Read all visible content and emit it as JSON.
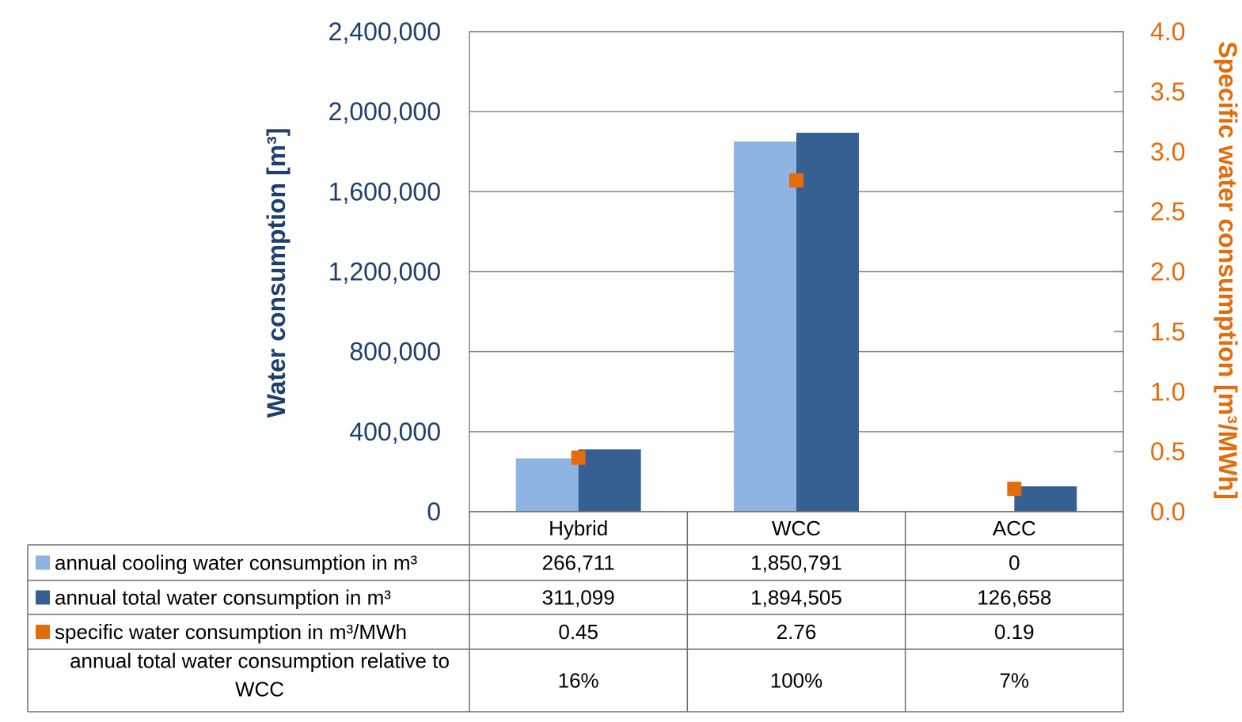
{
  "chart_data": {
    "type": "bar",
    "categories": [
      "Hybrid",
      "WCC",
      "ACC"
    ],
    "series": [
      {
        "name": "annual cooling water consumption in m³",
        "axis": "left",
        "kind": "bar",
        "color": "#8eb4e3",
        "values": [
          266711,
          1850791,
          0
        ]
      },
      {
        "name": "annual total water consumption in m³",
        "axis": "left",
        "kind": "bar",
        "color": "#376092",
        "values": [
          311099,
          1894505,
          126658
        ]
      },
      {
        "name": "specific water consumption in  m³/MWh",
        "axis": "right",
        "kind": "marker",
        "color": "#e46c0a",
        "values": [
          0.45,
          2.76,
          0.19
        ]
      }
    ],
    "ylabel": "Water consumption [m³]",
    "y2label": "Specific water consumption [m³/MWh]",
    "ylim": [
      0,
      2400000
    ],
    "y2lim": [
      0,
      4.0
    ],
    "yticks": [
      "0",
      "400,000",
      "800,000",
      "1,200,000",
      "1,600,000",
      "2,000,000",
      "2,400,000"
    ],
    "y2ticks": [
      "0.0",
      "0.5",
      "1.0",
      "1.5",
      "2.0",
      "2.5",
      "3.0",
      "3.5",
      "4.0"
    ],
    "grid": true,
    "data_table": {
      "rows": [
        {
          "label": "annual cooling water consumption in m³",
          "legend_key": "#8eb4e3",
          "cells": [
            "266,711",
            "1,850,791",
            "0"
          ]
        },
        {
          "label": "annual total water consumption in m³",
          "legend_key": "#376092",
          "cells": [
            "311,099",
            "1,894,505",
            "126,658"
          ]
        },
        {
          "label": "specific water consumption in  m³/MWh",
          "legend_key": "#e46c0a",
          "cells": [
            "0.45",
            "2.76",
            "0.19"
          ]
        },
        {
          "label_lines": [
            "annual total water consumption relative to",
            "WCC"
          ],
          "legend_key": null,
          "cells": [
            "16%",
            "100%",
            "7%"
          ]
        }
      ]
    }
  }
}
